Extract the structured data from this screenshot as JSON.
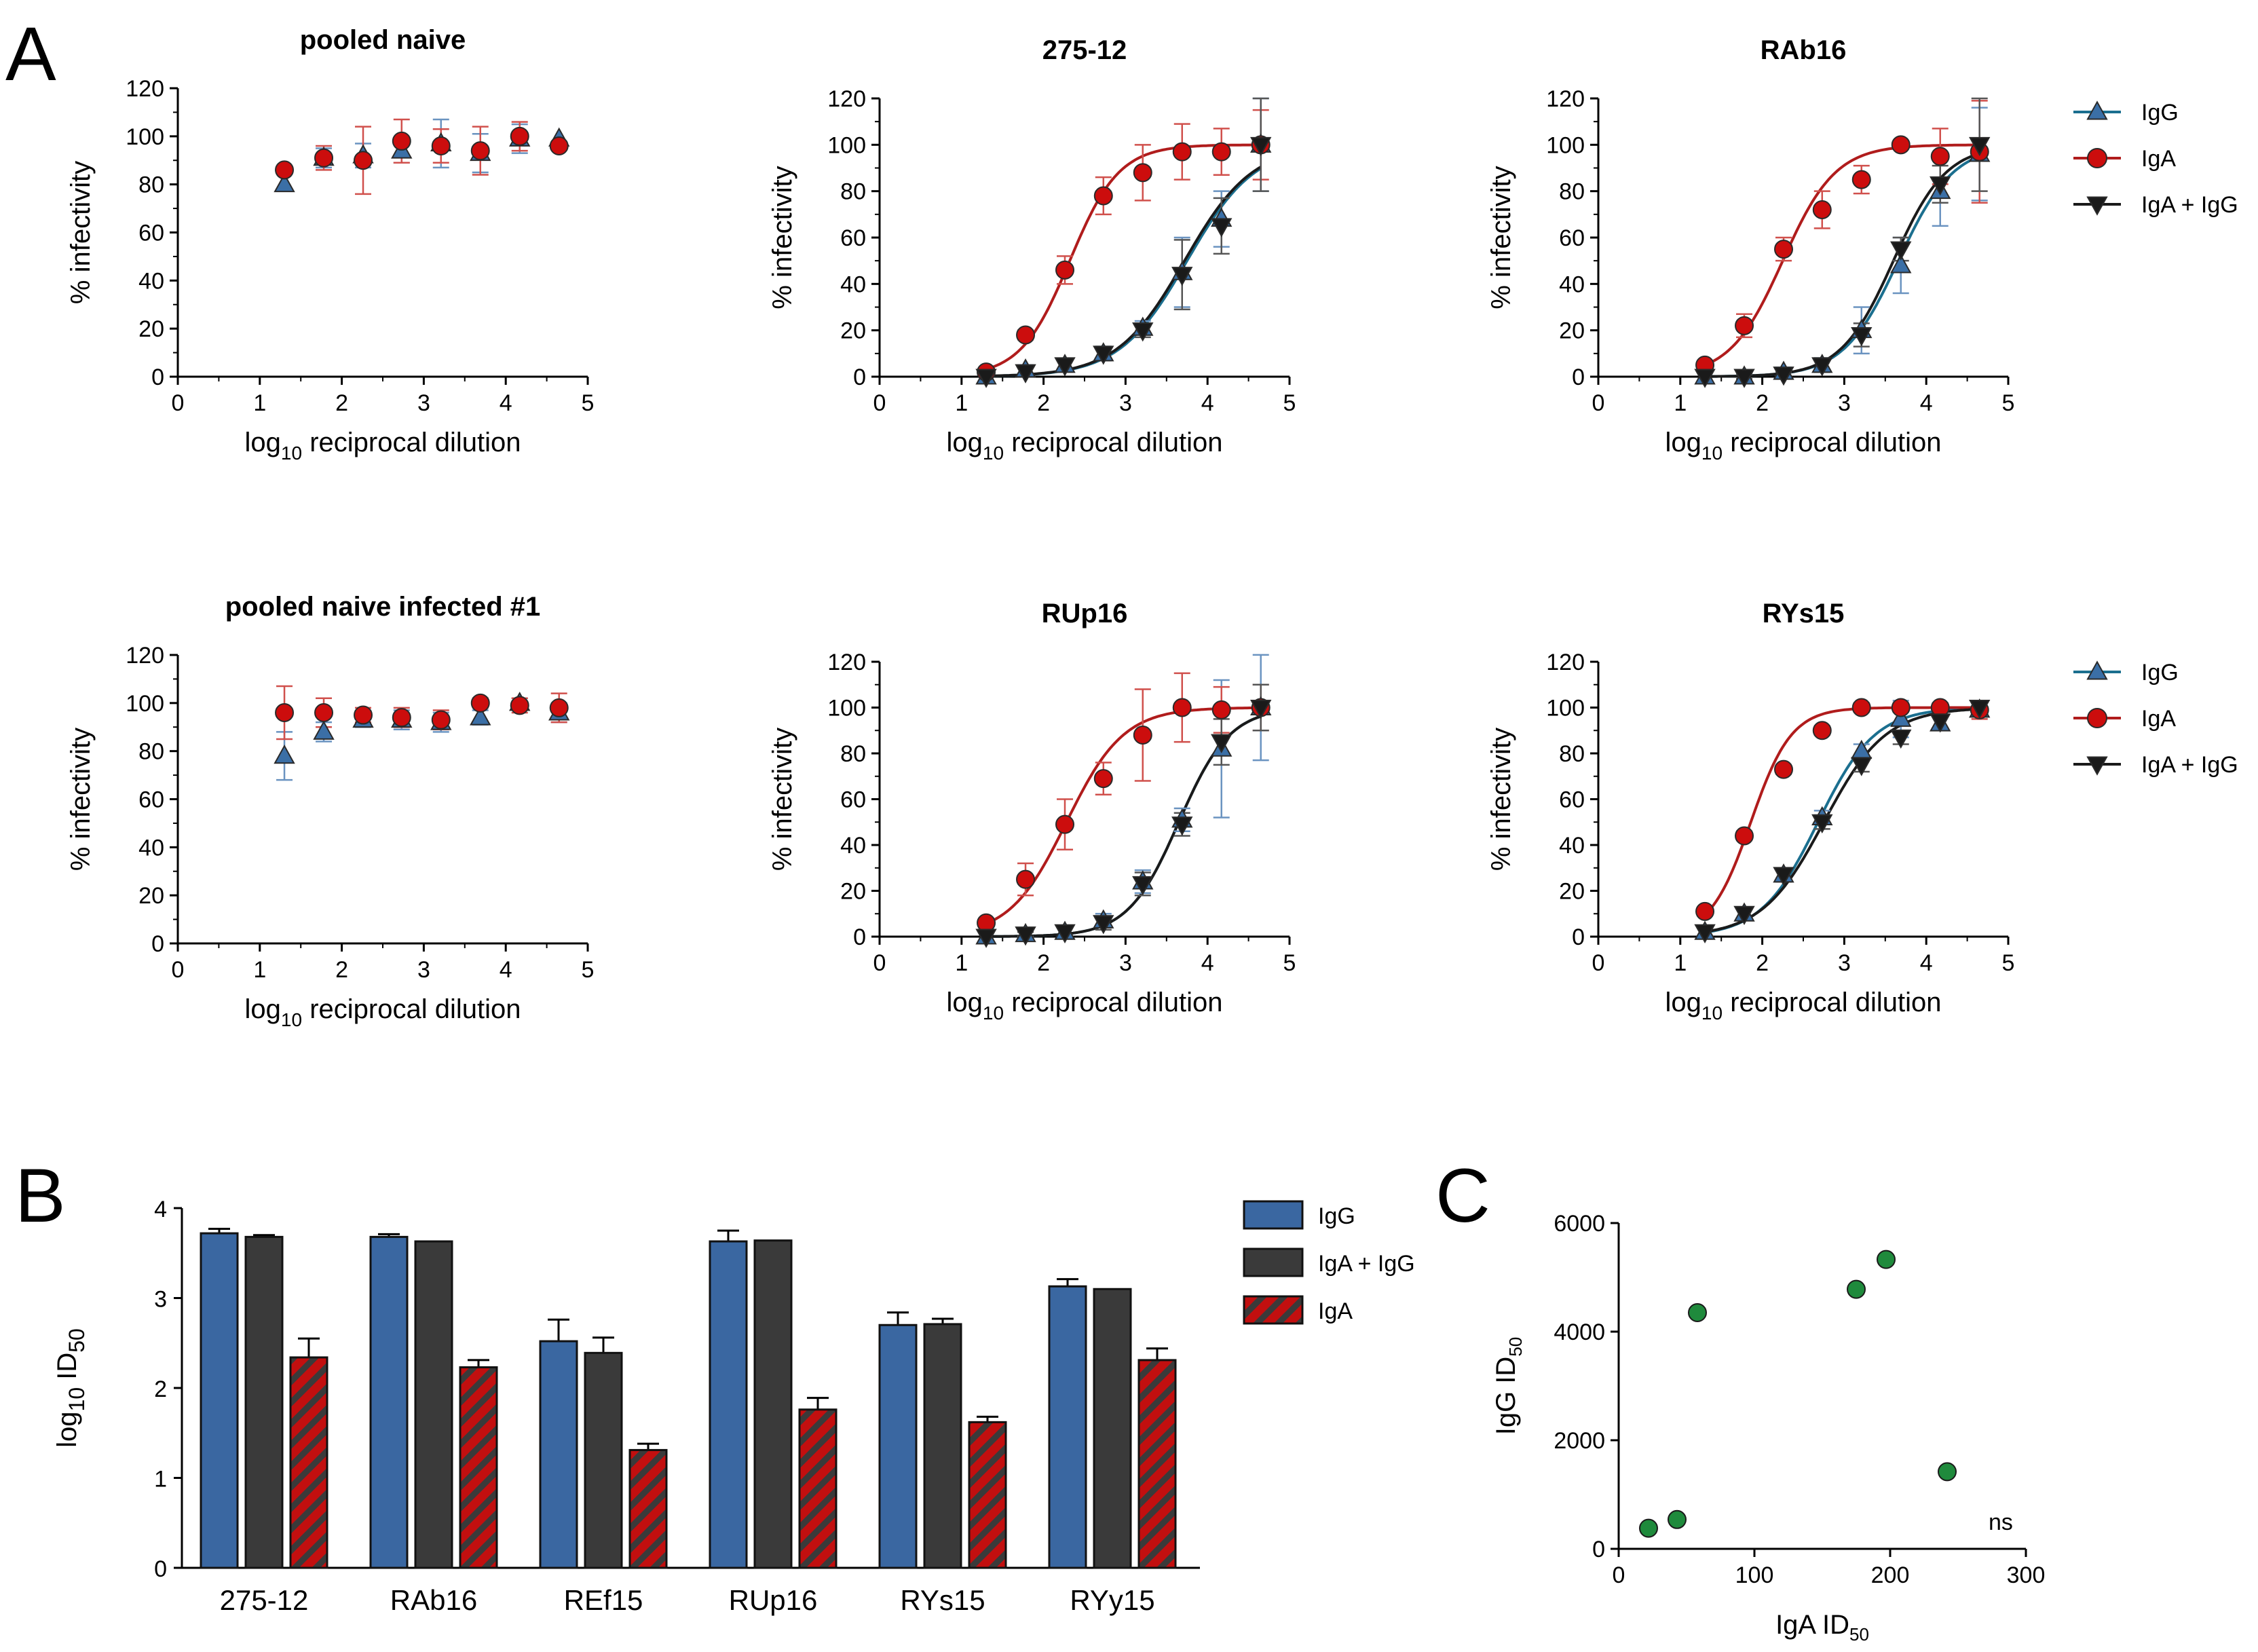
{
  "panels": {
    "a": "A",
    "b": "B",
    "c": "C"
  },
  "colors": {
    "igg": "#3b6fa6",
    "iga": "#cc0d0d",
    "combo": "#1a1a1a",
    "igg_fit": "#1b6f8f",
    "iga_fit": "#b01c1c",
    "combo_fit": "#1a1a1a",
    "bar_igg": "#3a67a1",
    "bar_combo": "#3a3a3a",
    "bar_iga": "#c20f0f",
    "scatter": "#1f8a3c"
  },
  "legend_a": [
    {
      "key": "igg",
      "label": "IgG",
      "marker": "triangle-up"
    },
    {
      "key": "iga",
      "label": "IgA",
      "marker": "circle"
    },
    {
      "key": "combo",
      "label": "IgA + IgG",
      "marker": "triangle-down"
    }
  ],
  "legend_b": [
    {
      "key": "bar_igg",
      "label": "IgG",
      "pattern": "solid"
    },
    {
      "key": "bar_combo",
      "label": "IgA + IgG",
      "pattern": "solid"
    },
    {
      "key": "bar_iga",
      "label": "IgA",
      "pattern": "hatched"
    }
  ],
  "chart_data": [
    {
      "id": "naive",
      "type": "scatter",
      "title": "pooled naive",
      "xlabel_main": "log",
      "xlabel_sub": "10",
      "xlabel_rest": " reciprocal dilution",
      "ylabel": "% infectivity",
      "xlim": [
        0,
        5
      ],
      "ylim": [
        0,
        120
      ],
      "xticks": [
        "0",
        "1",
        "2",
        "3",
        "4",
        "5"
      ],
      "yticks": [
        "0",
        "20",
        "40",
        "60",
        "80",
        "100",
        "120"
      ],
      "x": [
        1.3,
        1.78,
        2.26,
        2.73,
        3.21,
        3.69,
        4.17,
        4.65
      ],
      "series": [
        {
          "key": "igg",
          "name": "IgG",
          "values": [
            80,
            91,
            92,
            94,
            97,
            93,
            99,
            99
          ],
          "err": [
            0,
            4,
            5,
            5,
            10,
            8,
            6,
            0
          ],
          "fit": false
        },
        {
          "key": "iga",
          "name": "IgA",
          "values": [
            86,
            91,
            90,
            98,
            96,
            94,
            100,
            96
          ],
          "err": [
            0,
            5,
            14,
            9,
            7,
            10,
            6,
            0
          ],
          "fit": false
        }
      ]
    },
    {
      "id": "p27512",
      "type": "line",
      "title": "275-12",
      "xlabel_main": "log",
      "xlabel_sub": "10",
      "xlabel_rest": " reciprocal dilution",
      "ylabel": "% infectivity",
      "xlim": [
        0,
        5
      ],
      "ylim": [
        0,
        120
      ],
      "xticks": [
        "0",
        "1",
        "2",
        "3",
        "4",
        "5"
      ],
      "yticks": [
        "0",
        "20",
        "40",
        "60",
        "80",
        "100",
        "120"
      ],
      "x": [
        1.3,
        1.78,
        2.26,
        2.73,
        3.21,
        3.69,
        4.17,
        4.65
      ],
      "series": [
        {
          "key": "igg",
          "name": "IgG",
          "values": [
            0,
            3,
            5,
            10,
            21,
            45,
            68,
            100
          ],
          "err": [
            0,
            2,
            2,
            3,
            3,
            15,
            12,
            20
          ],
          "fit": true,
          "ec50": 3.75,
          "hill": 1.05
        },
        {
          "key": "iga",
          "name": "IgA",
          "values": [
            2,
            18,
            46,
            78,
            88,
            97,
            97,
            100
          ],
          "err": [
            0,
            2,
            6,
            8,
            12,
            12,
            10,
            15
          ],
          "fit": true,
          "ec50": 2.32,
          "hill": 1.45
        },
        {
          "key": "combo",
          "name": "IgA + IgG",
          "values": [
            0,
            2,
            5,
            10,
            20,
            44,
            65,
            100
          ],
          "err": [
            0,
            2,
            2,
            3,
            3,
            15,
            12,
            20
          ],
          "fit": true,
          "ec50": 3.72,
          "hill": 1.05
        }
      ]
    },
    {
      "id": "rab16",
      "type": "line",
      "title": "RAb16",
      "xlabel_main": "log",
      "xlabel_sub": "10",
      "xlabel_rest": " reciprocal dilution",
      "ylabel": "% infectivity",
      "xlim": [
        0,
        5
      ],
      "ylim": [
        0,
        120
      ],
      "xticks": [
        "0",
        "1",
        "2",
        "3",
        "4",
        "5"
      ],
      "yticks": [
        "0",
        "20",
        "40",
        "60",
        "80",
        "100",
        "120"
      ],
      "x": [
        1.3,
        1.78,
        2.26,
        2.73,
        3.21,
        3.69,
        4.17,
        4.65
      ],
      "series": [
        {
          "key": "igg",
          "name": "IgG",
          "values": [
            0,
            0,
            2,
            5,
            20,
            48,
            80,
            96
          ],
          "err": [
            0,
            1,
            2,
            3,
            10,
            12,
            15,
            20
          ],
          "fit": true,
          "ec50": 3.66,
          "hill": 1.3
        },
        {
          "key": "iga",
          "name": "IgA",
          "values": [
            5,
            22,
            55,
            72,
            85,
            100,
            95,
            97
          ],
          "err": [
            0,
            5,
            5,
            8,
            6,
            0,
            12,
            22
          ],
          "fit": true,
          "ec50": 2.25,
          "hill": 1.35
        },
        {
          "key": "combo",
          "name": "IgA + IgG",
          "values": [
            0,
            0,
            1,
            5,
            18,
            55,
            83,
            100
          ],
          "err": [
            0,
            1,
            1,
            3,
            5,
            5,
            8,
            20
          ],
          "fit": true,
          "ec50": 3.6,
          "hill": 1.35
        }
      ]
    },
    {
      "id": "naive1",
      "type": "scatter",
      "title": "pooled naive infected #1",
      "xlabel_main": "log",
      "xlabel_sub": "10",
      "xlabel_rest": " reciprocal dilution",
      "ylabel": "% infectivity",
      "xlim": [
        0,
        5
      ],
      "ylim": [
        0,
        120
      ],
      "xticks": [
        "0",
        "1",
        "2",
        "3",
        "4",
        "5"
      ],
      "yticks": [
        "0",
        "20",
        "40",
        "60",
        "80",
        "100",
        "120"
      ],
      "x": [
        1.3,
        1.78,
        2.26,
        2.73,
        3.21,
        3.69,
        4.17,
        4.65
      ],
      "series": [
        {
          "key": "igg",
          "name": "IgG",
          "values": [
            78,
            88,
            93,
            93,
            92,
            94,
            100,
            96
          ],
          "err": [
            10,
            4,
            3,
            4,
            4,
            3,
            2,
            4
          ],
          "fit": false
        },
        {
          "key": "iga",
          "name": "IgA",
          "values": [
            96,
            96,
            95,
            94,
            93,
            100,
            99,
            98
          ],
          "err": [
            11,
            6,
            3,
            4,
            4,
            2,
            3,
            6
          ],
          "fit": false
        }
      ]
    },
    {
      "id": "rup16",
      "type": "line",
      "title": "RUp16",
      "xlabel_main": "log",
      "xlabel_sub": "10",
      "xlabel_rest": " reciprocal dilution",
      "ylabel": "% infectivity",
      "xlim": [
        0,
        5
      ],
      "ylim": [
        0,
        120
      ],
      "xticks": [
        "0",
        "1",
        "2",
        "3",
        "4",
        "5"
      ],
      "yticks": [
        "0",
        "20",
        "40",
        "60",
        "80",
        "100",
        "120"
      ],
      "x": [
        1.3,
        1.78,
        2.26,
        2.73,
        3.21,
        3.69,
        4.17,
        4.65
      ],
      "series": [
        {
          "key": "igg",
          "name": "IgG",
          "values": [
            0,
            1,
            2,
            7,
            24,
            51,
            82,
            100
          ],
          "err": [
            0,
            1,
            2,
            3,
            5,
            5,
            30,
            23
          ],
          "fit": true,
          "ec50": 3.65,
          "hill": 1.4
        },
        {
          "key": "iga",
          "name": "IgA",
          "values": [
            6,
            25,
            49,
            69,
            88,
            100,
            99,
            100
          ],
          "err": [
            0,
            7,
            11,
            7,
            20,
            15,
            10,
            10
          ],
          "fit": true,
          "ec50": 2.28,
          "hill": 1.25
        },
        {
          "key": "combo",
          "name": "IgA + IgG",
          "values": [
            0,
            1,
            2,
            6,
            23,
            49,
            85,
            100
          ],
          "err": [
            0,
            1,
            2,
            3,
            5,
            5,
            10,
            10
          ],
          "fit": true,
          "ec50": 3.65,
          "hill": 1.4
        }
      ]
    },
    {
      "id": "rys15",
      "type": "line",
      "title": "RYs15",
      "xlabel_main": "log",
      "xlabel_sub": "10",
      "xlabel_rest": " reciprocal dilution",
      "ylabel": "% infectivity",
      "xlim": [
        0,
        5
      ],
      "ylim": [
        0,
        120
      ],
      "xticks": [
        "0",
        "1",
        "2",
        "3",
        "4",
        "5"
      ],
      "yticks": [
        "0",
        "20",
        "40",
        "60",
        "80",
        "100",
        "120"
      ],
      "x": [
        1.3,
        1.78,
        2.26,
        2.73,
        3.21,
        3.69,
        4.17,
        4.65
      ],
      "series": [
        {
          "key": "igg",
          "name": "IgG",
          "values": [
            2,
            10,
            27,
            52,
            81,
            95,
            93,
            99
          ],
          "err": [
            0,
            2,
            3,
            3,
            3,
            8,
            3,
            3
          ],
          "fit": true,
          "ec50": 2.68,
          "hill": 1.25
        },
        {
          "key": "iga",
          "name": "IgA",
          "values": [
            11,
            44,
            73,
            90,
            100,
            100,
            100,
            99
          ],
          "err": [
            0,
            2,
            2,
            2,
            2,
            2,
            2,
            4
          ],
          "fit": true,
          "ec50": 1.86,
          "hill": 1.75
        },
        {
          "key": "combo",
          "name": "IgA + IgG",
          "values": [
            2,
            10,
            27,
            50,
            75,
            87,
            94,
            100
          ],
          "err": [
            0,
            2,
            3,
            3,
            3,
            3,
            3,
            3
          ],
          "fit": true,
          "ec50": 2.75,
          "hill": 1.15
        }
      ]
    },
    {
      "id": "bars",
      "type": "bar",
      "ylabel_main": "log",
      "ylabel_sub": "10",
      "ylabel_rest": " ID",
      "ylabel_sub2": "50",
      "ylim": [
        0,
        4
      ],
      "yticks": [
        "0",
        "1",
        "2",
        "3",
        "4"
      ],
      "categories": [
        "275-12",
        "RAb16",
        "REf15",
        "RUp16",
        "RYs15",
        "RYy15"
      ],
      "series": [
        {
          "key": "bar_igg",
          "name": "IgG",
          "values": [
            3.72,
            3.68,
            2.52,
            3.63,
            2.7,
            3.13
          ],
          "err": [
            0.05,
            0.03,
            0.24,
            0.12,
            0.14,
            0.08
          ]
        },
        {
          "key": "bar_combo",
          "name": "IgA + IgG",
          "values": [
            3.68,
            3.63,
            2.39,
            3.64,
            2.71,
            3.1
          ],
          "err": [
            0.02,
            0,
            0.17,
            0,
            0.06,
            0
          ]
        },
        {
          "key": "bar_iga",
          "name": "IgA",
          "values": [
            2.34,
            2.23,
            1.31,
            1.76,
            1.62,
            2.31
          ],
          "err": [
            0.21,
            0.08,
            0.07,
            0.13,
            0.06,
            0.13
          ]
        }
      ]
    },
    {
      "id": "corr",
      "type": "scatter",
      "xlabel_main": "IgA ID",
      "xlabel_sub": "50",
      "ylabel_main": "IgG ID",
      "ylabel_sub": "50",
      "xlim": [
        0,
        300
      ],
      "ylim": [
        0,
        6000
      ],
      "xticks": [
        "0",
        "100",
        "200",
        "300"
      ],
      "yticks": [
        "0",
        "2000",
        "4000",
        "6000"
      ],
      "points": [
        {
          "x": 22,
          "y": 380
        },
        {
          "x": 43,
          "y": 540
        },
        {
          "x": 58,
          "y": 4350
        },
        {
          "x": 175,
          "y": 4780
        },
        {
          "x": 197,
          "y": 5330
        },
        {
          "x": 242,
          "y": 1420
        }
      ],
      "annotation": "ns"
    }
  ]
}
